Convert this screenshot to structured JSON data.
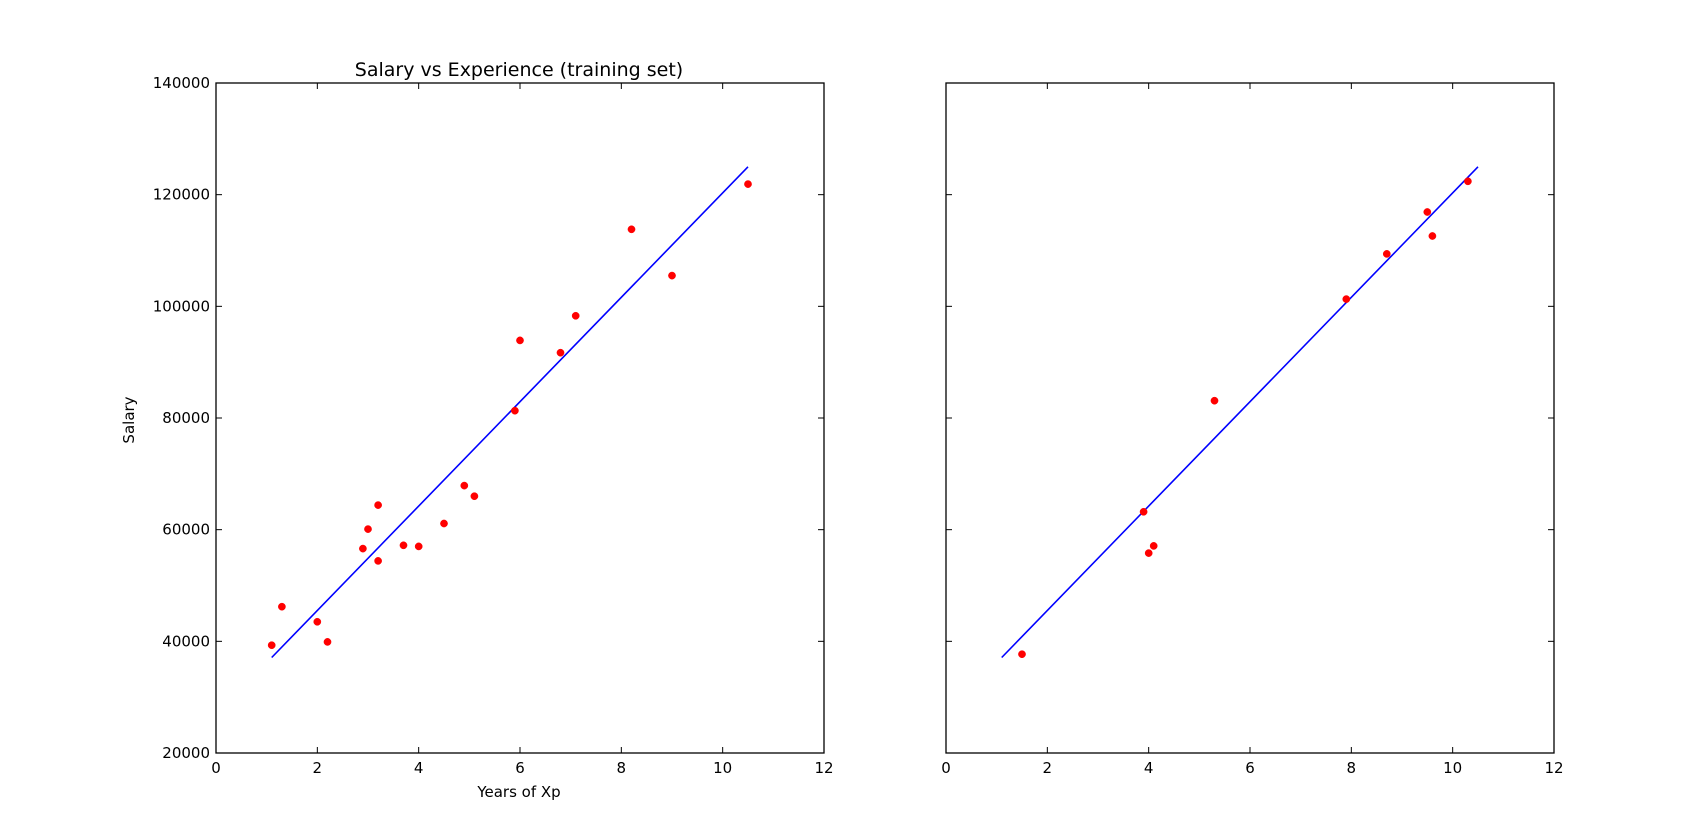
{
  "colors": {
    "line": "#0000ff",
    "points": "#ff0000",
    "axes": "#000000",
    "background": "#ffffff"
  },
  "chart_data": [
    {
      "type": "scatter",
      "title": "Salary vs Experience (training set)",
      "xlabel": "Years of Xp",
      "ylabel": "Salary",
      "xlim": [
        0,
        12
      ],
      "ylim": [
        20000,
        140000
      ],
      "xticks": [
        "0",
        "2",
        "4",
        "6",
        "8",
        "10",
        "12"
      ],
      "yticks": [
        "20000",
        "40000",
        "60000",
        "80000",
        "100000",
        "120000",
        "140000"
      ],
      "grid": false,
      "legend": "none",
      "points": [
        {
          "x": 1.1,
          "y": 39300
        },
        {
          "x": 1.3,
          "y": 46200
        },
        {
          "x": 2.0,
          "y": 43500
        },
        {
          "x": 2.2,
          "y": 39900
        },
        {
          "x": 2.9,
          "y": 56600
        },
        {
          "x": 3.0,
          "y": 60100
        },
        {
          "x": 3.2,
          "y": 54400
        },
        {
          "x": 3.2,
          "y": 64400
        },
        {
          "x": 3.7,
          "y": 57200
        },
        {
          "x": 4.0,
          "y": 57000
        },
        {
          "x": 4.5,
          "y": 61100
        },
        {
          "x": 4.9,
          "y": 67900
        },
        {
          "x": 5.1,
          "y": 66000
        },
        {
          "x": 5.9,
          "y": 81300
        },
        {
          "x": 6.0,
          "y": 93900
        },
        {
          "x": 6.8,
          "y": 91700
        },
        {
          "x": 7.1,
          "y": 98300
        },
        {
          "x": 8.2,
          "y": 113800
        },
        {
          "x": 9.0,
          "y": 105500
        },
        {
          "x": 10.5,
          "y": 121900
        }
      ],
      "line": [
        {
          "x": 1.1,
          "y": 37100
        },
        {
          "x": 10.5,
          "y": 125000
        }
      ]
    },
    {
      "type": "scatter",
      "title": "",
      "xlabel": "",
      "ylabel": "",
      "xlim": [
        0,
        12
      ],
      "ylim": [
        20000,
        140000
      ],
      "xticks": [
        "0",
        "2",
        "4",
        "6",
        "8",
        "10",
        "12"
      ],
      "yticks": [],
      "grid": false,
      "legend": "none",
      "points": [
        {
          "x": 1.5,
          "y": 37700
        },
        {
          "x": 3.9,
          "y": 63200
        },
        {
          "x": 4.0,
          "y": 55800
        },
        {
          "x": 4.1,
          "y": 57100
        },
        {
          "x": 5.3,
          "y": 83100
        },
        {
          "x": 7.9,
          "y": 101300
        },
        {
          "x": 8.7,
          "y": 109400
        },
        {
          "x": 9.5,
          "y": 116900
        },
        {
          "x": 9.6,
          "y": 112600
        },
        {
          "x": 10.3,
          "y": 122400
        }
      ],
      "line": [
        {
          "x": 1.1,
          "y": 37100
        },
        {
          "x": 10.5,
          "y": 125000
        }
      ]
    }
  ]
}
